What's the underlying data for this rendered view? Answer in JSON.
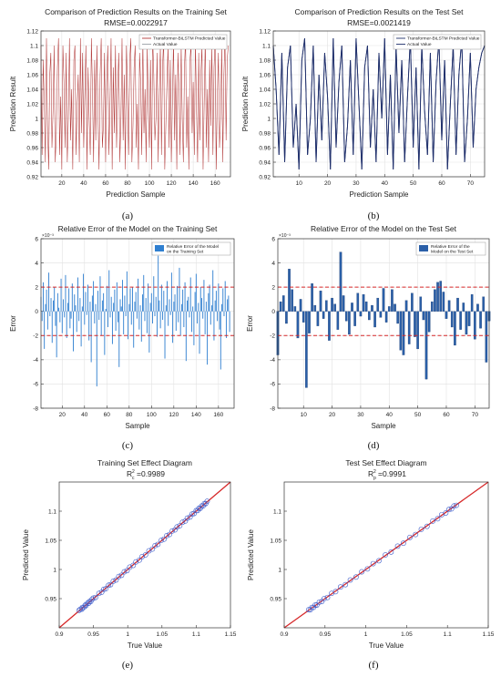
{
  "colors": {
    "predicted_line": "#b23a3a",
    "actual_line": "#9aa0a6",
    "test_line": "#1f2f6b",
    "error_bar_train": "#2f7fd0",
    "error_bar_test": "#2a5fa8",
    "threshold_line": "#d62728",
    "scatter_marker": "#3a59c9",
    "fit_line": "#d62728",
    "grid": "#e2e2e2"
  },
  "chart_data": [
    {
      "id": "a",
      "type": "line",
      "panel_label": "(a)",
      "title": "Comparison of Prediction Results on the Training Set",
      "subtitle": "RMSE=0.0022917",
      "xlabel": "Prediction Sample",
      "ylabel": "Prediction Result",
      "xlim": [
        1,
        174
      ],
      "ylim": [
        0.92,
        1.12
      ],
      "xticks": [
        20,
        40,
        60,
        80,
        100,
        120,
        140,
        160
      ],
      "yticks": [
        0.92,
        0.94,
        0.96,
        0.98,
        1,
        1.02,
        1.04,
        1.06,
        1.08,
        1.1,
        1.12
      ],
      "grid": true,
      "legend_position": "top-right",
      "series": [
        {
          "name": "Transformer-BiLSTM Predicted Value",
          "role": "predicted",
          "values": [
            1.1,
            0.95,
            1.08,
            1.02,
            0.94,
            1.11,
            0.99,
            0.93,
            1.06,
            1.09,
            0.96,
            1.01,
            1.1,
            0.94,
            0.98,
            1.07,
            1.11,
            0.95,
            1.03,
            0.93,
            1.1,
            1.05,
            0.96,
            1.09,
            0.94,
            1.0,
            1.11,
            0.97,
            1.04,
            0.93,
            1.08,
            1.1,
            0.95,
            1.02,
            1.06,
            0.94,
            1.11,
            0.98,
            1.09,
            0.96,
            1.03,
            1.1,
            0.93,
            1.07,
            1.0,
            0.95,
            1.11,
            1.04,
            0.94,
            1.08,
            0.97,
            1.1,
            1.01,
            0.93,
            1.06,
            1.11,
            0.96,
            0.99,
            1.09,
            0.94,
            1.05,
            1.1,
            0.95,
            1.02,
            1.11,
            0.93,
            1.07,
            0.98,
            1.1,
            0.96,
            1.04,
            1.09,
            0.94,
            1.0,
            1.11,
            0.97,
            1.06,
            0.93,
            1.1,
            1.03,
            0.95,
            1.08,
            1.11,
            0.94,
            0.99,
            1.07,
            1.1,
            0.96,
            1.02,
            0.93,
            1.09,
            1.05,
            0.95,
            1.11,
            0.98,
            1.04,
            0.94,
            1.1,
            1.01,
            0.96,
            1.08,
            0.93,
            1.11,
            1.06,
            0.97,
            1.0,
            1.09,
            0.94,
            1.03,
            1.1,
            0.95,
            1.07,
            1.11,
            0.93,
            0.99,
            1.05,
            1.1,
            0.96,
            1.08,
            0.94,
            1.02,
            1.11,
            0.97,
            1.06,
            0.93,
            1.09,
            1.04,
            0.95,
            1.1,
            1.0,
            0.94,
            1.07,
            1.11,
            0.96,
            1.03,
            0.93,
            1.08,
            1.1,
            0.98,
            1.05,
            0.95,
            1.11,
            1.01,
            0.94,
            1.09,
            0.97,
            1.06,
            1.1,
            0.93,
            1.02,
            1.11,
            0.96,
            1.04,
            0.94,
            1.08,
            0.99,
            1.1,
            0.95,
            1.07,
            1.11,
            0.93,
            1.03,
            1.09,
            0.96,
            1.0,
            1.1,
            0.94,
            1.06,
            1.11,
            0.97,
            1.08,
            1.1
          ]
        }
      ]
    },
    {
      "id": "b",
      "type": "line",
      "panel_label": "(b)",
      "title": "Comparison of Prediction Results on the Test Set",
      "subtitle": "RMSE=0.0021419",
      "xlabel": "Prediction Sample",
      "ylabel": "Prediction Result",
      "xlim": [
        1,
        75
      ],
      "ylim": [
        0.92,
        1.12
      ],
      "xticks": [
        10,
        20,
        30,
        40,
        50,
        60,
        70
      ],
      "yticks": [
        0.92,
        0.94,
        0.96,
        0.98,
        1,
        1.02,
        1.04,
        1.06,
        1.08,
        1.1,
        1.12
      ],
      "grid": true,
      "legend_position": "top-right",
      "series": [
        {
          "name": "Transformer-BiLSTM Predicted Value",
          "role": "predicted",
          "values": [
            1.1,
            1.04,
            0.95,
            1.09,
            0.94,
            1.07,
            1.1,
            0.96,
            1.02,
            0.93,
            1.08,
            1.11,
            0.95,
            1.0,
            1.1,
            0.94,
            1.06,
            0.97,
            1.09,
            1.03,
            0.93,
            1.11,
            0.96,
            1.05,
            1.1,
            0.94,
            0.99,
            1.08,
            0.95,
            1.11,
            1.02,
            0.93,
            1.07,
            1.1,
            0.96,
            1.04,
            0.94,
            1.09,
            1.0,
            1.11,
            0.95,
            1.06,
            0.93,
            1.1,
            0.98,
            1.08,
            0.94,
            1.03,
            1.11,
            0.96,
            1.07,
            0.93,
            1.1,
            1.01,
            0.95,
            1.09,
            0.94,
            1.05,
            1.11,
            0.97,
            1.08,
            0.93,
            1.02,
            1.1,
            0.95,
            1.06,
            1.11,
            0.94,
            1.0,
            1.09,
            0.96,
            1.04,
            1.07,
            1.09,
            1.1
          ]
        },
        {
          "name": "Actual Value",
          "role": "actual",
          "values": [
            1.1,
            1.04,
            0.95,
            1.09,
            0.94,
            1.07,
            1.1,
            0.96,
            1.02,
            0.93,
            1.08,
            1.11,
            0.95,
            1.0,
            1.1,
            0.94,
            1.06,
            0.97,
            1.09,
            1.03,
            0.93,
            1.11,
            0.96,
            1.05,
            1.1,
            0.94,
            0.99,
            1.08,
            0.95,
            1.11,
            1.02,
            0.93,
            1.07,
            1.1,
            0.96,
            1.04,
            0.94,
            1.09,
            1.0,
            1.11,
            0.95,
            1.06,
            0.93,
            1.1,
            0.98,
            1.08,
            0.94,
            1.03,
            1.11,
            0.96,
            1.07,
            0.93,
            1.1,
            1.01,
            0.95,
            1.09,
            0.94,
            1.05,
            1.11,
            0.97,
            1.08,
            0.93,
            1.02,
            1.1,
            0.95,
            1.06,
            1.11,
            0.94,
            1.0,
            1.09,
            0.96,
            1.04,
            1.07,
            1.09,
            1.1
          ]
        }
      ]
    },
    {
      "id": "c",
      "type": "bar",
      "panel_label": "(c)",
      "title": "Relative Error of the Model on the Training Set",
      "xlabel": "Sample",
      "ylabel": "Error",
      "exponent": "×10⁻³",
      "xlim": [
        1,
        174
      ],
      "ylim": [
        -8,
        6
      ],
      "xticks": [
        20,
        40,
        60,
        80,
        100,
        120,
        140,
        160
      ],
      "yticks": [
        -8,
        -6,
        -4,
        -2,
        0,
        2,
        4,
        6
      ],
      "thresholds": [
        2,
        -2
      ],
      "grid": true,
      "legend_position": "top-right",
      "series": [
        {
          "name": "Relative Error of the Model on the Training Set",
          "values": [
            1.2,
            -0.8,
            2.4,
            -3.1,
            0.6,
            1.8,
            -1.5,
            3.2,
            -0.4,
            1.1,
            -2.6,
            0.9,
            2.0,
            -1.2,
            -3.8,
            1.5,
            0.3,
            -0.9,
            2.7,
            -1.8,
            1.0,
            -0.5,
            3.0,
            -2.2,
            0.7,
            1.9,
            -1.4,
            -0.6,
            2.3,
            -3.3,
            1.4,
            0.5,
            -1.7,
            2.8,
            -0.8,
            1.1,
            -2.9,
            0.4,
            3.1,
            -1.1,
            1.6,
            -0.3,
            2.2,
            -2.4,
            0.8,
            -4.2,
            1.3,
            2.5,
            -1.0,
            0.6,
            -6.2,
            1.7,
            -0.7,
            2.9,
            -2.0,
            0.9,
            1.5,
            -3.6,
            0.2,
            2.1,
            -1.3,
            3.4,
            -0.5,
            1.2,
            -2.7,
            0.7,
            1.8,
            -1.6,
            2.4,
            -0.9,
            -4.6,
            1.0,
            0.4,
            2.6,
            -1.9,
            1.3,
            -0.4,
            3.3,
            -2.3,
            0.6,
            1.9,
            -1.1,
            2.0,
            -3.0,
            0.8,
            1.6,
            -0.6,
            2.7,
            -1.5,
            0.5,
            -2.5,
            1.4,
            3.0,
            -0.8,
            1.1,
            -1.8,
            2.3,
            -3.4,
            0.7,
            1.5,
            -1.0,
            2.9,
            -0.4,
            1.2,
            -2.1,
            4.6,
            0.9,
            -1.4,
            2.2,
            -0.7,
            1.7,
            -3.9,
            0.5,
            2.5,
            -1.2,
            1.0,
            -0.3,
            3.2,
            -2.6,
            0.8,
            1.4,
            -1.6,
            2.1,
            -0.9,
            3.6,
            -2.0,
            0.6,
            1.8,
            -1.3,
            2.4,
            -4.1,
            0.9,
            1.2,
            -0.5,
            2.8,
            -1.7,
            0.4,
            -2.8,
            1.6,
            3.1,
            -1.0,
            0.7,
            -3.5,
            2.0,
            1.1,
            -0.6,
            2.6,
            -1.9,
            0.8,
            -4.4,
            1.5,
            2.2,
            -1.1,
            0.5,
            3.4,
            -2.4,
            0.9,
            1.7,
            -0.8,
            2.3,
            -1.5,
            -4.8,
            0.6,
            1.9,
            -0.4,
            2.5,
            -2.2,
            1.0,
            1.3,
            -1.7
          ]
        }
      ]
    },
    {
      "id": "d",
      "type": "bar",
      "panel_label": "(d)",
      "title": "Relative Error of the Model on the Test Set",
      "xlabel": "Sample",
      "ylabel": "Error",
      "exponent": "×10⁻³",
      "xlim": [
        1,
        75
      ],
      "ylim": [
        -8,
        6
      ],
      "xticks": [
        10,
        20,
        30,
        40,
        50,
        60,
        70
      ],
      "yticks": [
        -8,
        -6,
        -4,
        -2,
        0,
        2,
        4,
        6
      ],
      "thresholds": [
        2,
        -2
      ],
      "grid": true,
      "legend_position": "top-right",
      "series": [
        {
          "name": "Relative Error of the Model on the Test Set",
          "values": [
            -3.6,
            0.8,
            1.3,
            -1.0,
            3.5,
            1.8,
            0.4,
            -2.2,
            1.0,
            -0.9,
            -6.3,
            -1.8,
            2.3,
            0.5,
            -1.2,
            1.7,
            -0.6,
            0.9,
            -2.4,
            1.1,
            0.6,
            -1.5,
            4.9,
            1.3,
            -0.8,
            -1.9,
            0.7,
            -1.2,
            1.5,
            -0.4,
            1.4,
            0.8,
            -0.7,
            0.5,
            -1.3,
            1.1,
            -0.5,
            1.9,
            -0.9,
            0.4,
            1.8,
            0.6,
            -1.0,
            -3.2,
            -3.6,
            0.9,
            -2.7,
            1.5,
            -2.1,
            -3.1,
            1.2,
            -0.7,
            -5.6,
            -1.7,
            0.8,
            1.8,
            2.4,
            2.5,
            1.6,
            -0.6,
            0.9,
            -1.3,
            -2.8,
            1.1,
            -1.5,
            0.7,
            -1.9,
            -1.2,
            1.4,
            -2.3,
            0.6,
            -1.4,
            1.2,
            -4.2,
            -0.8
          ]
        }
      ]
    },
    {
      "id": "e",
      "type": "scatter",
      "panel_label": "(e)",
      "title": "Training Set Effect Diagram",
      "subtitle_main": "R",
      "subtitle_sup": "2",
      "subtitle_sub": "c",
      "subtitle_value": "=0.9989",
      "xlabel": "True Value",
      "ylabel": "Predicted Value",
      "xlim": [
        0.9,
        1.15
      ],
      "ylim": [
        0.9,
        1.15
      ],
      "xticks": [
        0.9,
        0.95,
        1,
        1.05,
        1.1,
        1.15
      ],
      "xtick_labels": [
        "0.9",
        "0.95",
        "1",
        "1.05",
        "1.1",
        "1.15"
      ],
      "yticks": [
        0.95,
        1,
        1.05,
        1.1
      ],
      "ytick_labels": [
        "0.95",
        "1",
        "1.05",
        "1.1"
      ],
      "grid": false,
      "reference_line": "y = x",
      "x": [
        0.929,
        0.931,
        0.933,
        0.934,
        0.936,
        0.938,
        0.939,
        0.941,
        0.943,
        0.944,
        0.946,
        0.948,
        0.95,
        0.953,
        0.958,
        0.962,
        0.965,
        0.968,
        0.972,
        0.975,
        0.979,
        0.983,
        0.987,
        0.991,
        0.995,
        0.999,
        1.003,
        1.008,
        1.012,
        1.017,
        1.021,
        1.026,
        1.031,
        1.036,
        1.04,
        1.044,
        1.049,
        1.053,
        1.057,
        1.061,
        1.065,
        1.069,
        1.072,
        1.076,
        1.08,
        1.084,
        1.087,
        1.091,
        1.094,
        1.097,
        1.1,
        1.102,
        1.104,
        1.106,
        1.108,
        1.11,
        1.112,
        1.114,
        1.116
      ],
      "y": [
        0.93,
        0.932,
        0.932,
        0.935,
        0.935,
        0.939,
        0.938,
        0.942,
        0.942,
        0.945,
        0.945,
        0.949,
        0.951,
        0.952,
        0.959,
        0.961,
        0.966,
        0.967,
        0.973,
        0.974,
        0.98,
        0.982,
        0.988,
        0.99,
        0.996,
        0.998,
        1.004,
        1.007,
        1.013,
        1.016,
        1.022,
        1.025,
        1.032,
        1.035,
        1.041,
        1.043,
        1.05,
        1.052,
        1.058,
        1.06,
        1.066,
        1.068,
        1.073,
        1.075,
        1.081,
        1.083,
        1.088,
        1.09,
        1.095,
        1.096,
        1.101,
        1.101,
        1.105,
        1.105,
        1.109,
        1.109,
        1.113,
        1.113,
        1.117
      ]
    },
    {
      "id": "f",
      "type": "scatter",
      "panel_label": "(f)",
      "title": "Test Set Effect Diagram",
      "subtitle_main": "R",
      "subtitle_sup": "2",
      "subtitle_sub": "p",
      "subtitle_value": "=0.9991",
      "xlabel": "True Value",
      "ylabel": "Predicted Value",
      "xlim": [
        0.9,
        1.15
      ],
      "ylim": [
        0.9,
        1.15
      ],
      "xticks": [
        0.9,
        0.95,
        1,
        1.05,
        1.1,
        1.15
      ],
      "xtick_labels": [
        "0.9",
        "0.95",
        "1",
        "1.05",
        "1.1",
        "1.15"
      ],
      "yticks": [
        0.95,
        1,
        1.05,
        1.1
      ],
      "ytick_labels": [
        "0.95",
        "1",
        "1.05",
        "1.1"
      ],
      "grid": false,
      "reference_line": "y = x",
      "x": [
        0.93,
        0.932,
        0.934,
        0.936,
        0.938,
        0.94,
        0.943,
        0.946,
        0.949,
        0.953,
        0.958,
        0.963,
        0.969,
        0.975,
        0.981,
        0.988,
        0.995,
        1.002,
        1.009,
        1.016,
        1.024,
        1.031,
        1.039,
        1.046,
        1.054,
        1.061,
        1.068,
        1.075,
        1.082,
        1.088,
        1.093,
        1.098,
        1.102,
        1.105,
        1.108,
        1.111
      ],
      "y": [
        0.931,
        0.931,
        0.935,
        0.935,
        0.939,
        0.939,
        0.944,
        0.945,
        0.95,
        0.952,
        0.959,
        0.962,
        0.97,
        0.974,
        0.982,
        0.987,
        0.996,
        1.001,
        1.01,
        1.015,
        1.025,
        1.03,
        1.04,
        1.045,
        1.055,
        1.06,
        1.069,
        1.074,
        1.083,
        1.087,
        1.094,
        1.097,
        1.103,
        1.104,
        1.109,
        1.11
      ]
    }
  ]
}
